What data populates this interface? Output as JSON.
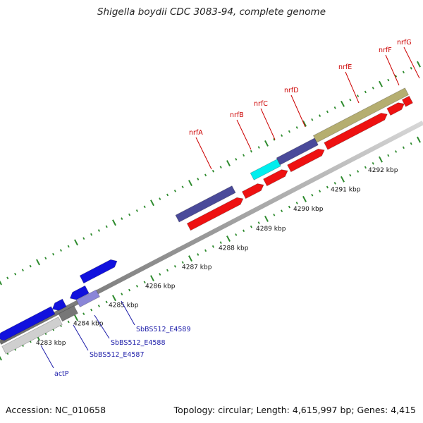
{
  "title": "Shigella boydii CDC 3083-94, complete genome",
  "footer": {
    "accession": "Accession: NC_010658",
    "stats": "Topology: circular; Length: 4,615,997 bp; Genes: 4,415"
  },
  "colors": {
    "backbone": "#8a8a8a",
    "tick": "#2e8b2e",
    "red_label": "#cc0000",
    "blue_label": "#1a1aa8",
    "forward_red": "#ee1111",
    "blue_cds": "#1111dd",
    "navy_cds": "#4a4a9a",
    "cyan_cds": "#00eeee",
    "olive_cds": "#b5ae70",
    "grey_cds": "#cfcfcf",
    "lilac_cds": "#8a86d8"
  },
  "scale_labels": [
    "4283 kbp",
    "4284 kbp",
    "4285 kbp",
    "4286 kbp",
    "4287 kbp",
    "4288 kbp",
    "4289 kbp",
    "4290 kbp",
    "4291 kbp",
    "4292 kbp"
  ],
  "red_gene_labels": [
    "nrfA",
    "nrfB",
    "nrfC",
    "nrfD",
    "nrfE",
    "nrfF",
    "nrfG"
  ],
  "blue_gene_labels": [
    "actP",
    "SbBS512_E4587",
    "SbBS512_E4588",
    "SbBS512_E4589"
  ]
}
